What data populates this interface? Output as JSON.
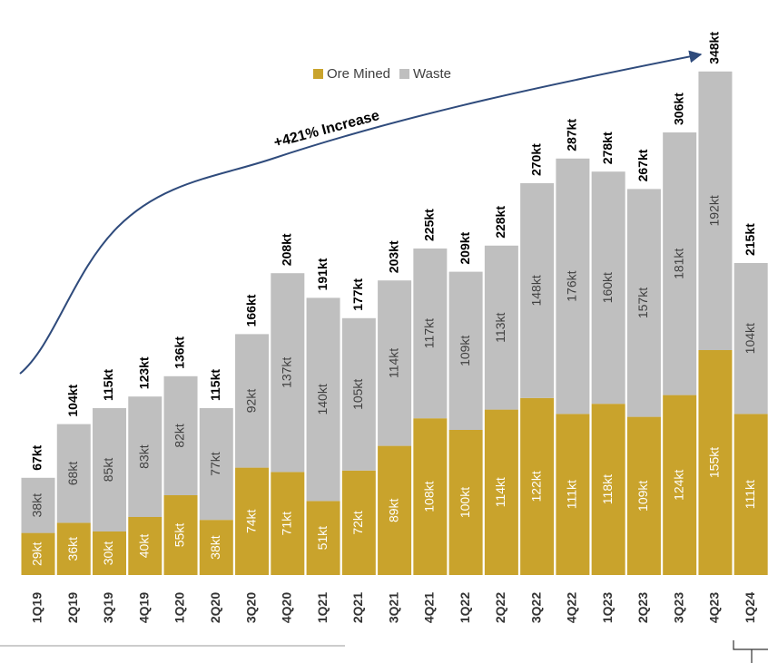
{
  "chart_data": {
    "type": "stacked_bar",
    "annotation": "+421% Increase",
    "categories": [
      "1Q19",
      "2Q19",
      "3Q19",
      "4Q19",
      "1Q20",
      "2Q20",
      "3Q20",
      "4Q20",
      "1Q21",
      "2Q21",
      "3Q21",
      "4Q21",
      "1Q22",
      "2Q22",
      "3Q22",
      "4Q22",
      "1Q23",
      "2Q23",
      "3Q23",
      "4Q23",
      "1Q24"
    ],
    "series": [
      {
        "name": "Ore Mined",
        "color": "#c9a32c",
        "values": [
          29,
          36,
          30,
          40,
          55,
          38,
          74,
          71,
          51,
          72,
          89,
          108,
          100,
          114,
          122,
          111,
          118,
          109,
          124,
          155,
          111
        ],
        "value_labels": [
          "29kt",
          "36kt",
          "30kt",
          "40kt",
          "55kt",
          "38kt",
          "74kt",
          "71kt",
          "51kt",
          "72kt",
          "89kt",
          "108kt",
          "100kt",
          "114kt",
          "122kt",
          "111kt",
          "118kt",
          "109kt",
          "124kt",
          "155kt",
          "111kt"
        ]
      },
      {
        "name": "Waste",
        "color": "#bfbfbf",
        "values": [
          38,
          68,
          85,
          83,
          82,
          77,
          92,
          137,
          140,
          105,
          114,
          117,
          109,
          113,
          148,
          176,
          160,
          157,
          181,
          192,
          104
        ],
        "value_labels": [
          "38kt",
          "68kt",
          "85kt",
          "83kt",
          "82kt",
          "77kt",
          "92kt",
          "137kt",
          "140kt",
          "105kt",
          "114kt",
          "117kt",
          "109kt",
          "113kt",
          "148kt",
          "176kt",
          "160kt",
          "157kt",
          "181kt",
          "192kt",
          "104kt"
        ]
      }
    ],
    "totals": {
      "values": [
        67,
        104,
        115,
        123,
        136,
        115,
        166,
        208,
        191,
        177,
        203,
        225,
        209,
        228,
        270,
        287,
        278,
        267,
        306,
        348,
        215
      ],
      "value_labels": [
        "67kt",
        "104kt",
        "115kt",
        "123kt",
        "136kt",
        "115kt",
        "166kt",
        "208kt",
        "191kt",
        "177kt",
        "203kt",
        "225kt",
        "209kt",
        "228kt",
        "270kt",
        "287kt",
        "278kt",
        "267kt",
        "306kt",
        "348kt",
        "215kt"
      ]
    },
    "legend": "top"
  }
}
